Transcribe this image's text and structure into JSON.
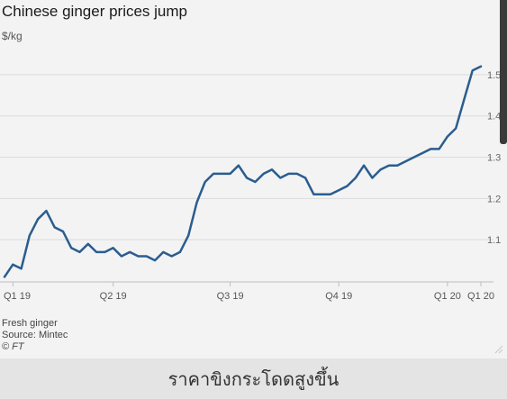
{
  "chart_data": {
    "type": "line",
    "title": "Chinese ginger prices jump",
    "ylabel": "$/kg",
    "ylim": [
      1.0,
      1.55
    ],
    "yticks": [
      1.1,
      1.2,
      1.3,
      1.4,
      1.5
    ],
    "ytick_labels": [
      "1.1",
      "1.2",
      "1.3",
      "1.4",
      "1.5"
    ],
    "x_tick_labels": [
      "Q1 19",
      "Q2 19",
      "Q3 19",
      "Q4 19",
      "Q1 20",
      "Q1 20"
    ],
    "x_tick_index": [
      1,
      13,
      27,
      40,
      53,
      57
    ],
    "grid": true,
    "legend": "none",
    "line_color": "#2a5d8f",
    "values": [
      1.01,
      1.04,
      1.03,
      1.11,
      1.15,
      1.17,
      1.13,
      1.12,
      1.08,
      1.07,
      1.09,
      1.07,
      1.07,
      1.08,
      1.06,
      1.07,
      1.06,
      1.06,
      1.05,
      1.07,
      1.06,
      1.07,
      1.11,
      1.19,
      1.24,
      1.26,
      1.26,
      1.26,
      1.28,
      1.25,
      1.24,
      1.26,
      1.27,
      1.25,
      1.26,
      1.26,
      1.25,
      1.21,
      1.21,
      1.21,
      1.22,
      1.23,
      1.25,
      1.28,
      1.25,
      1.27,
      1.28,
      1.28,
      1.29,
      1.3,
      1.31,
      1.32,
      1.32,
      1.35,
      1.37,
      1.44,
      1.51,
      1.52
    ]
  },
  "footer": {
    "note": "Fresh ginger",
    "source": "Source: Mintec",
    "copyright": "© FT"
  },
  "caption": "ราคาขิงกระโดดสูงขึ้น"
}
